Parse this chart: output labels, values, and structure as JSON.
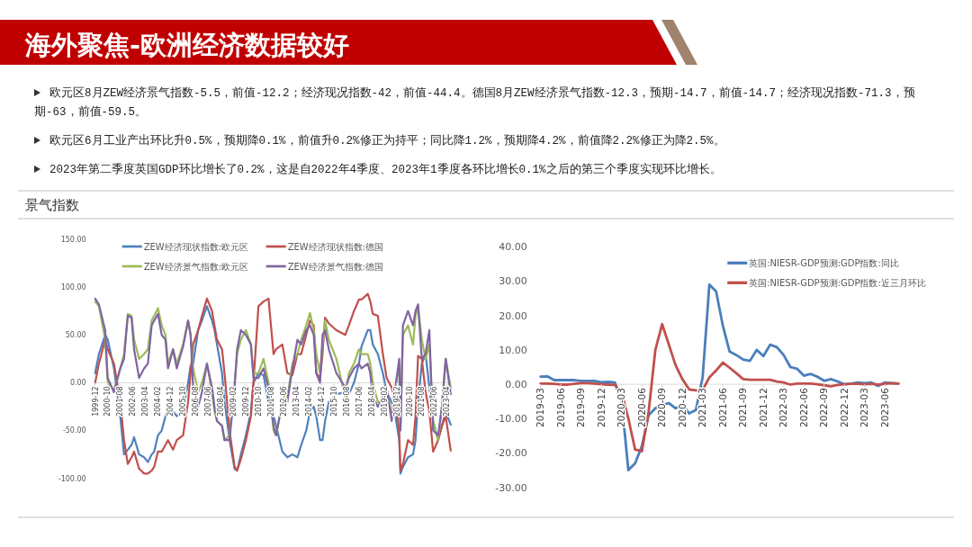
{
  "chart_data": [
    {
      "type": "other",
      "title": "海外聚焦-欧洲经济数据较好",
      "subtitle": "景气指数",
      "annotations": [
        "欧元区8月ZEW经济景气指数-5.5，前值-12.2；经济现况指数-42，前值-44.4。德国8月ZEW经济景气指数-12.3，预期-14.7，前值-14.7；经济现况指数-71.3，预期-63，前值-59.5。",
        "欧元区6月工业产出环比升0.5%，预期降0.1%，前值升0.2%修正为持平；同比降1.2%，预期降4.2%，前值降2.2%修正为降2.5%。",
        "2023年第二季度英国GDP环比增长了0.2%，这是自2022年4季度、2023年1季度各环比增长0.1%之后的第三个季度实现环比增长。"
      ]
    },
    {
      "type": "line",
      "legend": "top",
      "xlim": [
        "1999-12",
        "2023-07"
      ],
      "ylim": [
        -100,
        150
      ],
      "yticks": [
        {
          "value": -100,
          "label": "-100.00"
        },
        {
          "value": -50,
          "label": "-50.00"
        },
        {
          "value": 0,
          "label": "0.00"
        },
        {
          "value": 50,
          "label": "50.00"
        },
        {
          "value": 100,
          "label": "100.00"
        },
        {
          "value": 150,
          "label": "150.00"
        }
      ],
      "xticks": [
        "1999-12",
        "2000-10",
        "2001-08",
        "2002-06",
        "2003-04",
        "2004-02",
        "2004-12",
        "2005-10",
        "2006-08",
        "2007-06",
        "2008-04",
        "2009-02",
        "2009-12",
        "2010-10",
        "2011-08",
        "2012-06",
        "2013-04",
        "2014-02",
        "2014-12",
        "2015-10",
        "2016-08",
        "2017-06",
        "2018-04",
        "2019-02",
        "2019-12",
        "2020-10",
        "2021-08",
        "2022-06",
        "2023-04"
      ],
      "x": [
        "1999-12",
        "2000-03",
        "2000-08",
        "2000-10",
        "2001-03",
        "2001-08",
        "2001-11",
        "2002-02",
        "2002-05",
        "2002-07",
        "2002-11",
        "2003-03",
        "2003-06",
        "2003-09",
        "2003-11",
        "2004-02",
        "2004-05",
        "2004-08",
        "2004-10",
        "2005-02",
        "2005-05",
        "2005-10",
        "2006-02",
        "2006-04",
        "2006-06",
        "2006-10",
        "2007-01",
        "2007-05",
        "2007-09",
        "2007-11",
        "2008-01",
        "2008-05",
        "2008-07",
        "2008-11",
        "2009-03",
        "2009-05",
        "2009-08",
        "2009-12",
        "2010-04",
        "2010-06",
        "2010-10",
        "2011-02",
        "2011-06",
        "2011-10",
        "2011-12",
        "2012-05",
        "2012-09",
        "2013-01",
        "2013-05",
        "2013-08",
        "2013-12",
        "2014-03",
        "2014-06",
        "2014-08",
        "2014-11",
        "2015-01",
        "2015-03",
        "2015-06",
        "2015-12",
        "2016-07",
        "2016-10",
        "2017-02",
        "2017-06",
        "2017-08",
        "2018-01",
        "2018-03",
        "2018-05",
        "2018-09",
        "2019-01",
        "2019-04",
        "2019-08",
        "2019-11",
        "2020-02",
        "2020-03",
        "2020-05",
        "2020-09",
        "2021-01",
        "2021-03",
        "2021-05",
        "2021-08",
        "2021-11",
        "2022-02",
        "2022-05",
        "2022-09",
        "2022-12",
        "2023-03",
        "2023-07"
      ],
      "series": [
        {
          "name": "ZEW经济现状指数:欧元区",
          "color": "#4f81bd",
          "values": [
            10,
            30,
            50,
            45,
            15,
            -35,
            -75,
            -70,
            -65,
            -57,
            -75,
            -78,
            -83,
            -75,
            -72,
            -55,
            -50,
            -35,
            -27,
            -30,
            -35,
            -27,
            0,
            18,
            20,
            55,
            65,
            80,
            65,
            55,
            40,
            10,
            -20,
            -60,
            -90,
            -92,
            -75,
            -55,
            -30,
            0,
            10,
            8,
            -20,
            -35,
            -45,
            -72,
            -78,
            -75,
            -78,
            -65,
            -50,
            -30,
            -25,
            -35,
            -60,
            -60,
            -40,
            -20,
            -12,
            -10,
            -12,
            0,
            20,
            38,
            55,
            55,
            40,
            30,
            10,
            -10,
            -20,
            -35,
            -60,
            -95,
            -88,
            -78,
            -75,
            -60,
            -20,
            20,
            30,
            -5,
            -40,
            -60,
            -45,
            -30,
            -44
          ]
        },
        {
          "name": "ZEW经济现状指数:德国",
          "color": "#c0504d",
          "values": [
            0,
            20,
            45,
            35,
            20,
            -20,
            -60,
            -85,
            -78,
            -72,
            -90,
            -95,
            -95,
            -92,
            -88,
            -72,
            -72,
            -65,
            -60,
            -70,
            -60,
            -55,
            -20,
            10,
            40,
            55,
            70,
            88,
            75,
            60,
            45,
            35,
            10,
            -50,
            -88,
            -92,
            -80,
            -60,
            -35,
            0,
            80,
            85,
            88,
            30,
            35,
            40,
            10,
            8,
            30,
            30,
            50,
            65,
            60,
            10,
            5,
            30,
            68,
            62,
            55,
            50,
            60,
            75,
            87,
            87,
            93,
            85,
            72,
            70,
            30,
            5,
            -5,
            -20,
            -50,
            -92,
            -85,
            -60,
            -65,
            -35,
            28,
            25,
            -10,
            -30,
            -72,
            -60,
            -45,
            -35,
            -71
          ]
        },
        {
          "name": "ZEW经济景气指数:欧元区",
          "color": "#9bbb59",
          "values": [
            85,
            80,
            45,
            0,
            -8,
            15,
            30,
            72,
            70,
            45,
            25,
            30,
            35,
            65,
            70,
            78,
            60,
            50,
            20,
            35,
            20,
            40,
            65,
            50,
            15,
            -10,
            0,
            20,
            -10,
            -30,
            -40,
            -45,
            -60,
            -55,
            0,
            30,
            45,
            55,
            40,
            10,
            10,
            25,
            0,
            -50,
            -55,
            -20,
            -15,
            20,
            30,
            45,
            60,
            73,
            55,
            30,
            10,
            40,
            65,
            45,
            25,
            -15,
            10,
            20,
            35,
            30,
            30,
            20,
            0,
            -20,
            -20,
            -5,
            -35,
            -5,
            20,
            -50,
            50,
            60,
            40,
            70,
            80,
            45,
            25,
            40,
            -40,
            -60,
            -25,
            25,
            -5
          ]
        },
        {
          "name": "ZEW经济景气指数:德国",
          "color": "#8064a2",
          "values": [
            88,
            82,
            55,
            5,
            -10,
            15,
            25,
            70,
            68,
            35,
            5,
            15,
            20,
            60,
            65,
            72,
            50,
            45,
            15,
            35,
            15,
            38,
            65,
            50,
            -5,
            -25,
            -10,
            20,
            -5,
            -25,
            -40,
            -45,
            -60,
            -60,
            -5,
            35,
            55,
            50,
            40,
            5,
            5,
            15,
            -5,
            -45,
            -55,
            -20,
            -20,
            15,
            45,
            40,
            55,
            60,
            50,
            10,
            0,
            50,
            55,
            35,
            10,
            -5,
            5,
            15,
            20,
            15,
            20,
            10,
            -15,
            -25,
            -15,
            -5,
            -40,
            -5,
            25,
            -50,
            60,
            75,
            60,
            75,
            82,
            25,
            30,
            55,
            -50,
            -55,
            -25,
            25,
            -12
          ]
        }
      ]
    },
    {
      "type": "line",
      "legend": "top right",
      "xlim": [
        "2019-03",
        "2023-08"
      ],
      "ylim": [
        -30,
        40
      ],
      "yticks": [
        {
          "value": -30,
          "label": "-30.00"
        },
        {
          "value": -20,
          "label": "-20.00"
        },
        {
          "value": -10,
          "label": "-10.00"
        },
        {
          "value": 0,
          "label": "0.00"
        },
        {
          "value": 10,
          "label": "10.00"
        },
        {
          "value": 20,
          "label": "20.00"
        },
        {
          "value": 30,
          "label": "30.00"
        },
        {
          "value": 40,
          "label": "40.00"
        }
      ],
      "xticks": [
        "2019-03",
        "2019-06",
        "2019-09",
        "2019-12",
        "2020-03",
        "2020-06",
        "2020-09",
        "2020-12",
        "2021-03",
        "2021-06",
        "2021-09",
        "2021-12",
        "2022-03",
        "2022-06",
        "2022-09",
        "2022-12",
        "2023-03",
        "2023-06"
      ],
      "x": [
        "2019-03",
        "2019-04",
        "2019-05",
        "2019-06",
        "2019-07",
        "2019-08",
        "2019-09",
        "2019-10",
        "2019-11",
        "2019-12",
        "2020-01",
        "2020-02",
        "2020-03",
        "2020-04",
        "2020-05",
        "2020-06",
        "2020-07",
        "2020-08",
        "2020-09",
        "2020-10",
        "2020-11",
        "2020-12",
        "2021-01",
        "2021-02",
        "2021-03",
        "2021-04",
        "2021-05",
        "2021-06",
        "2021-07",
        "2021-08",
        "2021-09",
        "2021-10",
        "2021-11",
        "2021-12",
        "2022-01",
        "2022-02",
        "2022-03",
        "2022-04",
        "2022-05",
        "2022-06",
        "2022-07",
        "2022-08",
        "2022-09",
        "2022-10",
        "2022-11",
        "2022-12",
        "2023-01",
        "2023-02",
        "2023-03",
        "2023-04",
        "2023-05",
        "2023-06",
        "2023-07",
        "2023-08"
      ],
      "series": [
        {
          "name": "英国:NIESR-GDP预测:GDP指数:同比",
          "color": "#4a7ebb",
          "values": [
            2.2,
            2.3,
            1.2,
            1.2,
            1.2,
            1.2,
            1.0,
            1.0,
            1.0,
            0.6,
            0.7,
            0.5,
            -5,
            -25,
            -23,
            -18,
            -9,
            -7,
            -6,
            -5.5,
            -7,
            -6,
            -8.5,
            -7.5,
            2,
            29,
            27,
            17,
            9.5,
            8.5,
            7.2,
            6.8,
            10,
            8.2,
            11.5,
            10.8,
            8.5,
            5,
            4.5,
            2.5,
            3,
            2.2,
            1,
            1.5,
            0.8,
            0,
            0.2,
            0.5,
            0.3,
            0.5,
            -0.5,
            0.5,
            0.3,
            0.2
          ]
        },
        {
          "name": "英国:NIESR-GDP预测:GDP指数:近三月环比",
          "color": "#c0504d",
          "values": [
            0.2,
            0.2,
            0.1,
            -0.1,
            -0.1,
            0.1,
            0.3,
            0.3,
            0.2,
            0,
            -0.1,
            -0.2,
            -2.5,
            -10,
            -19,
            -19.5,
            -8,
            10,
            17.5,
            11.5,
            5.5,
            1.5,
            -1.5,
            -1.8,
            -1.7,
            2,
            4,
            6.3,
            4.8,
            3.2,
            1.5,
            1.3,
            1.3,
            1.3,
            1.3,
            0.8,
            0.5,
            -0.1,
            0.2,
            0.2,
            0.2,
            0,
            -0.3,
            -0.6,
            -0.2,
            0,
            0.1,
            0.1,
            0,
            0.1,
            -0.1,
            0.1,
            0.3,
            0.2
          ]
        }
      ]
    }
  ]
}
